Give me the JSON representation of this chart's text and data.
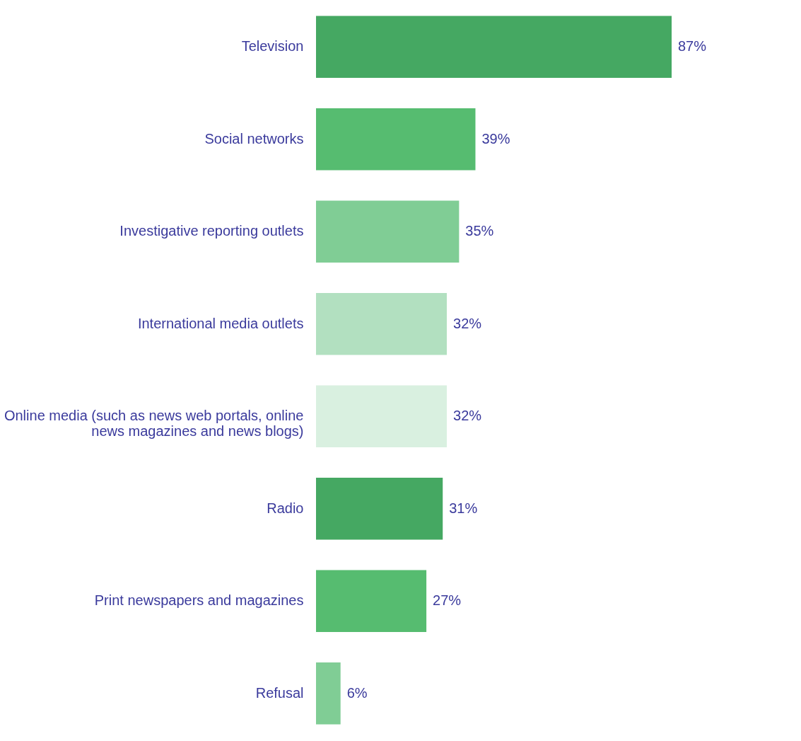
{
  "chart_data": {
    "type": "bar",
    "orientation": "horizontal",
    "categories": [
      "Television",
      "Social networks",
      "Investigative reporting outlets",
      "International media outlets",
      "Online media (such as news web portals, online news magazines and news blogs)",
      "Radio",
      "Print newspapers and magazines",
      "Refusal"
    ],
    "values": [
      87,
      39,
      35,
      32,
      32,
      31,
      27,
      6
    ],
    "value_labels": [
      "87%",
      "39%",
      "35%",
      "32%",
      "32%",
      "31%",
      "27%",
      "6%"
    ],
    "colors": [
      "#45a862",
      "#56bc70",
      "#80cd95",
      "#b2e0c0",
      "#d9f0e0",
      "#45a862",
      "#56bc70",
      "#80cd95"
    ]
  }
}
